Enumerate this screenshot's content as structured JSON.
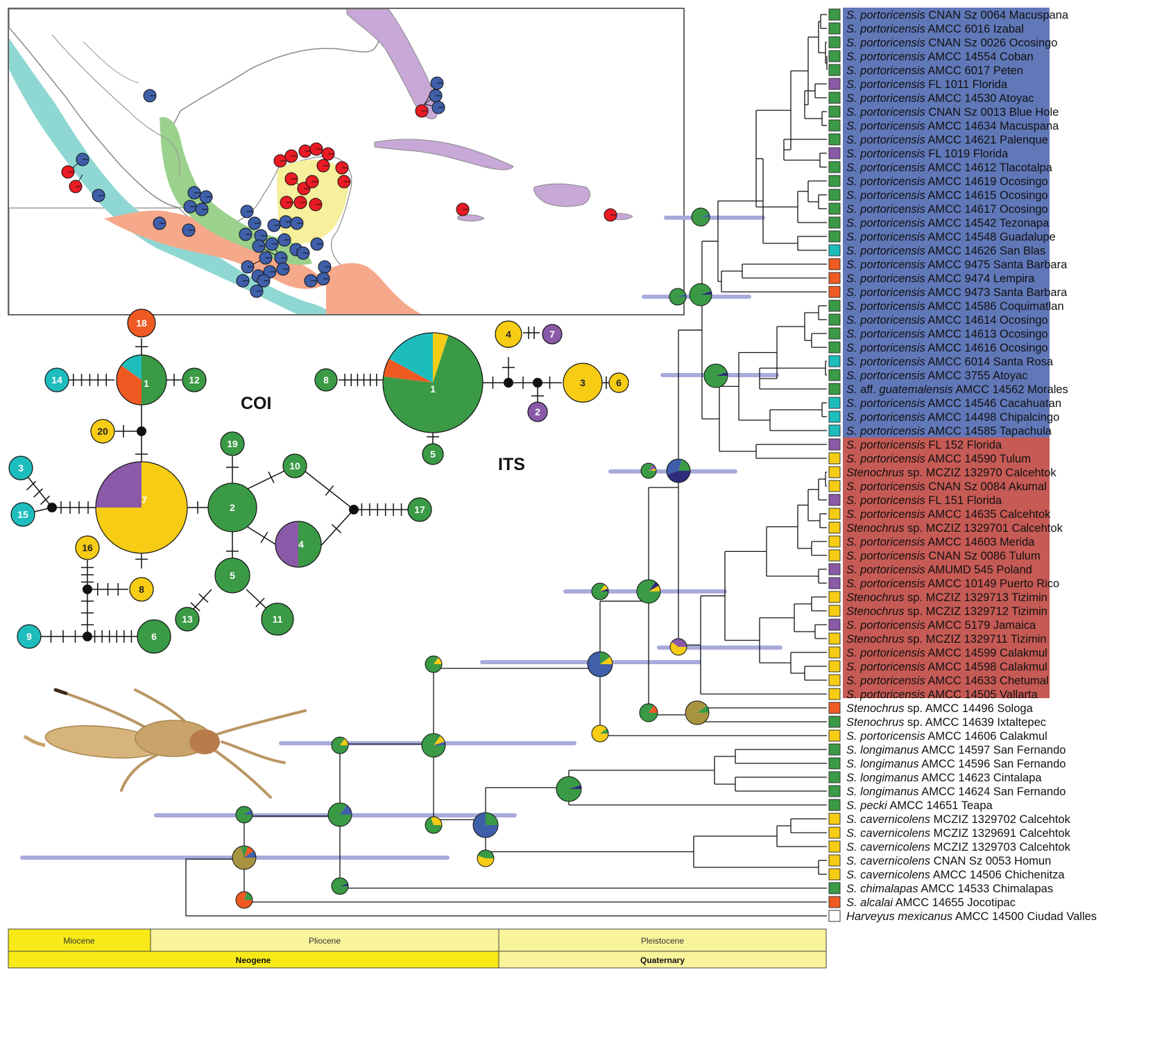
{
  "colors": {
    "green": "#3a9a45",
    "purple": "#8a5aa8",
    "cyan": "#1ebdbd",
    "orange": "#ef5a23",
    "yellow": "#f6cc14",
    "blue": "#3f5faa",
    "olive": "#a89440",
    "navy": "#2d2d7a",
    "clade_blue": "#6077b8",
    "clade_red": "#c65a55",
    "hpd_bar": "#a8aadc",
    "map_cyan": "#8fd7d3",
    "map_green": "#9ad18c",
    "map_salmon": "#f6a88a",
    "map_yellow": "#f6ef9b",
    "map_lilac": "#c7a8d6",
    "map_pin_red": "#ea1b25",
    "map_pin_blue": "#3f5faa",
    "epoch_yellow": "#f7ea18",
    "epoch_pale": "#f9f39b"
  },
  "networks": {
    "coi": {
      "title": "COI",
      "haplotypes": [
        {
          "id": "1",
          "label": "1"
        },
        {
          "id": "2",
          "label": "2"
        },
        {
          "id": "3",
          "label": "3"
        },
        {
          "id": "4",
          "label": "4"
        },
        {
          "id": "5",
          "label": "5"
        },
        {
          "id": "6",
          "label": "6"
        },
        {
          "id": "7",
          "label": "7"
        },
        {
          "id": "8",
          "label": "8"
        },
        {
          "id": "9",
          "label": "9"
        },
        {
          "id": "10",
          "label": "10"
        },
        {
          "id": "11",
          "label": "11"
        },
        {
          "id": "12",
          "label": "12"
        },
        {
          "id": "13",
          "label": "13"
        },
        {
          "id": "14",
          "label": "14"
        },
        {
          "id": "15",
          "label": "15"
        },
        {
          "id": "16",
          "label": "16"
        },
        {
          "id": "17",
          "label": "17"
        },
        {
          "id": "18",
          "label": "18"
        },
        {
          "id": "19",
          "label": "19"
        },
        {
          "id": "20",
          "label": "20"
        }
      ]
    },
    "its": {
      "title": "ITS",
      "haplotypes": [
        {
          "id": "1",
          "label": "1"
        },
        {
          "id": "2",
          "label": "2"
        },
        {
          "id": "3",
          "label": "3"
        },
        {
          "id": "4",
          "label": "4"
        },
        {
          "id": "5",
          "label": "5"
        },
        {
          "id": "6",
          "label": "6"
        },
        {
          "id": "7",
          "label": "7"
        },
        {
          "id": "8",
          "label": "8"
        }
      ]
    }
  },
  "tree": {
    "taxa": [
      {
        "genus": "S. portoricensis",
        "rest": "CNAN Sz 0064 Macuspana",
        "color": "green",
        "clade": "blue"
      },
      {
        "genus": "S. portoricensis",
        "rest": "AMCC 6016 Izabal",
        "color": "green",
        "clade": "blue"
      },
      {
        "genus": "S. portoricensis",
        "rest": "CNAN Sz 0026 Ocosingo",
        "color": "green",
        "clade": "blue"
      },
      {
        "genus": "S. portoricensis",
        "rest": "AMCC 14554 Coban",
        "color": "green",
        "clade": "blue"
      },
      {
        "genus": "S. portoricensis",
        "rest": "AMCC 6017 Peten",
        "color": "green",
        "clade": "blue"
      },
      {
        "genus": "S. portoricensis",
        "rest": "FL 1011 Florida",
        "color": "purple",
        "clade": "blue"
      },
      {
        "genus": "S. portoricensis",
        "rest": "AMCC 14530 Atoyac",
        "color": "green",
        "clade": "blue"
      },
      {
        "genus": "S. portoricensis",
        "rest": "CNAN Sz 0013 Blue Hole",
        "color": "green",
        "clade": "blue"
      },
      {
        "genus": "S. portoricensis",
        "rest": "AMCC 14634 Macuspana",
        "color": "green",
        "clade": "blue"
      },
      {
        "genus": "S. portoricensis",
        "rest": "AMCC 14621 Palenque",
        "color": "green",
        "clade": "blue"
      },
      {
        "genus": "S. portoricensis",
        "rest": "FL 1019 Florida",
        "color": "purple",
        "clade": "blue"
      },
      {
        "genus": "S. portoricensis",
        "rest": "AMCC 14612 Tlacotalpa",
        "color": "green",
        "clade": "blue"
      },
      {
        "genus": "S. portoricensis",
        "rest": "AMCC 14619 Ocosingo",
        "color": "green",
        "clade": "blue"
      },
      {
        "genus": "S. portoricensis",
        "rest": "AMCC 14615 Ocosingo",
        "color": "green",
        "clade": "blue"
      },
      {
        "genus": "S. portoricensis",
        "rest": "AMCC 14617 Ocosingo",
        "color": "green",
        "clade": "blue"
      },
      {
        "genus": "S. portoricensis",
        "rest": "AMCC 14542 Tezonapa",
        "color": "green",
        "clade": "blue"
      },
      {
        "genus": "S. portoricensis",
        "rest": "AMCC 14548 Guadalupe",
        "color": "green",
        "clade": "blue"
      },
      {
        "genus": "S. portoricensis",
        "rest": "AMCC 14626 San Blas",
        "color": "cyan",
        "clade": "blue"
      },
      {
        "genus": "S. portoricensis",
        "rest": "AMCC 9475 Santa Barbara",
        "color": "orange",
        "clade": "blue"
      },
      {
        "genus": "S. portoricensis",
        "rest": "AMCC 9474 Lempira",
        "color": "orange",
        "clade": "blue"
      },
      {
        "genus": "S. portoricensis",
        "rest": "AMCC 9473 Santa Barbara",
        "color": "orange",
        "clade": "blue"
      },
      {
        "genus": "S. portoricensis",
        "rest": "AMCC 14586 Coquimatlan",
        "color": "green",
        "clade": "blue"
      },
      {
        "genus": "S. portoricensis",
        "rest": "AMCC 14614 Ocosingo",
        "color": "green",
        "clade": "blue"
      },
      {
        "genus": "S. portoricensis",
        "rest": "AMCC 14613 Ocosingo",
        "color": "green",
        "clade": "blue"
      },
      {
        "genus": "S. portoricensis",
        "rest": "AMCC 14616 Ocosingo",
        "color": "green",
        "clade": "blue"
      },
      {
        "genus": "S. portoricensis",
        "rest": "AMCC 6014 Santa Rosa",
        "color": "cyan",
        "clade": "blue"
      },
      {
        "genus": "S. portoricensis",
        "rest": "AMCC 3755 Atoyac",
        "color": "green",
        "clade": "blue"
      },
      {
        "genus": "S. aff. guatemalensis",
        "rest": "AMCC 14562 Morales",
        "color": "green",
        "clade": "blue"
      },
      {
        "genus": "S. portoricensis",
        "rest": "AMCC 14546 Cacahuatan",
        "color": "cyan",
        "clade": "blue"
      },
      {
        "genus": "S. portoricensis",
        "rest": "AMCC 14498 Chipalcingo",
        "color": "cyan",
        "clade": "blue"
      },
      {
        "genus": "S. portoricensis",
        "rest": "AMCC 14585 Tapachula",
        "color": "cyan",
        "clade": "blue"
      },
      {
        "genus": "S. portoricensis",
        "rest": "FL 152 Florida",
        "color": "purple",
        "clade": "red"
      },
      {
        "genus": "S. portoricensis",
        "rest": "AMCC 14590 Tulum",
        "color": "yellow",
        "clade": "red"
      },
      {
        "genus": "Stenochrus",
        "rest": "sp. MCZIZ 132970 Calcehtok",
        "color": "yellow",
        "clade": "red"
      },
      {
        "genus": "S. portoricensis",
        "rest": "CNAN Sz 0084 Akumal",
        "color": "yellow",
        "clade": "red"
      },
      {
        "genus": "S. portoricensis",
        "rest": "FL 151 Florida",
        "color": "purple",
        "clade": "red"
      },
      {
        "genus": "S. portoricensis",
        "rest": "AMCC 14635 Calcehtok",
        "color": "yellow",
        "clade": "red"
      },
      {
        "genus": "Stenochrus",
        "rest": "sp. MCZIZ 1329701 Calcehtok",
        "color": "yellow",
        "clade": "red"
      },
      {
        "genus": "S. portoricensis",
        "rest": "AMCC 14603 Merida",
        "color": "yellow",
        "clade": "red"
      },
      {
        "genus": "S. portoricensis",
        "rest": "CNAN Sz 0086 Tulum",
        "color": "yellow",
        "clade": "red"
      },
      {
        "genus": "S. portoricensis",
        "rest": "AMUMD 545 Poland",
        "color": "purple",
        "clade": "red"
      },
      {
        "genus": "S. portoricensis",
        "rest": "AMCC 10149 Puerto Rico",
        "color": "purple",
        "clade": "red"
      },
      {
        "genus": "Stenochrus",
        "rest": "sp. MCZIZ 1329713 Tizimin",
        "color": "yellow",
        "clade": "red"
      },
      {
        "genus": "Stenochrus",
        "rest": "sp. MCZIZ 1329712 Tizimin",
        "color": "yellow",
        "clade": "red"
      },
      {
        "genus": "S. portoricensis",
        "rest": "AMCC 5179 Jamaica",
        "color": "purple",
        "clade": "red"
      },
      {
        "genus": "Stenochrus",
        "rest": "sp. MCZIZ 1329711 Tizimin",
        "color": "yellow",
        "clade": "red"
      },
      {
        "genus": "S. portoricensis",
        "rest": "AMCC 14599 Calakmul",
        "color": "yellow",
        "clade": "red"
      },
      {
        "genus": "S. portoricensis",
        "rest": "AMCC 14598 Calakmul",
        "color": "yellow",
        "clade": "red"
      },
      {
        "genus": "S. portoricensis",
        "rest": "AMCC 14633 Chetumal",
        "color": "yellow",
        "clade": "red"
      },
      {
        "genus": "S. portoricensis",
        "rest": "AMCC 14505 Vallarta",
        "color": "yellow",
        "clade": "red"
      },
      {
        "genus": "Stenochrus",
        "rest": "sp. AMCC 14496 Sologa",
        "color": "orange",
        "clade": "none"
      },
      {
        "genus": "Stenochrus",
        "rest": "sp. AMCC 14639 Ixtaltepec",
        "color": "green",
        "clade": "none"
      },
      {
        "genus": "S. portoricensis",
        "rest": "AMCC 14606 Calakmul",
        "color": "yellow",
        "clade": "none"
      },
      {
        "genus": "S. longimanus",
        "rest": "AMCC 14597 San Fernando",
        "color": "green",
        "clade": "none"
      },
      {
        "genus": "S. longimanus",
        "rest": "AMCC 14596 San Fernando",
        "color": "green",
        "clade": "none"
      },
      {
        "genus": "S. longimanus",
        "rest": "AMCC 14623 Cintalapa",
        "color": "green",
        "clade": "none"
      },
      {
        "genus": "S. longimanus",
        "rest": "AMCC 14624 San Fernando",
        "color": "green",
        "clade": "none"
      },
      {
        "genus": "S. pecki",
        "rest": "AMCC 14651 Teapa",
        "color": "green",
        "clade": "none"
      },
      {
        "genus": "S. cavernicolens",
        "rest": "MCZIZ 1329702 Calcehtok",
        "color": "yellow",
        "clade": "none"
      },
      {
        "genus": "S. cavernicolens",
        "rest": "MCZIZ 1329691 Calcehtok",
        "color": "yellow",
        "clade": "none"
      },
      {
        "genus": "S. cavernicolens",
        "rest": "MCZIZ 1329703 Calcehtok",
        "color": "yellow",
        "clade": "none"
      },
      {
        "genus": "S. cavernicolens",
        "rest": "CNAN Sz 0053 Homun",
        "color": "yellow",
        "clade": "none"
      },
      {
        "genus": "S. cavernicolens",
        "rest": "AMCC 14506 Chichenitza",
        "color": "yellow",
        "clade": "none"
      },
      {
        "genus": "S. chimalapas",
        "rest": "AMCC 14533 Chimalapas",
        "color": "green",
        "clade": "none"
      },
      {
        "genus": "S. alcalai",
        "rest": "AMCC 14655 Jocotipac",
        "color": "orange",
        "clade": "none"
      },
      {
        "genus": "Harveyus mexicanus",
        "rest": "AMCC 14500 Ciudad Valles",
        "color": "white",
        "clade": "none"
      }
    ]
  },
  "timescale": {
    "epochs": [
      "Miocene",
      "Pliocene",
      "Pleistocene"
    ],
    "periods": [
      "Neogene",
      "Quaternary"
    ]
  }
}
